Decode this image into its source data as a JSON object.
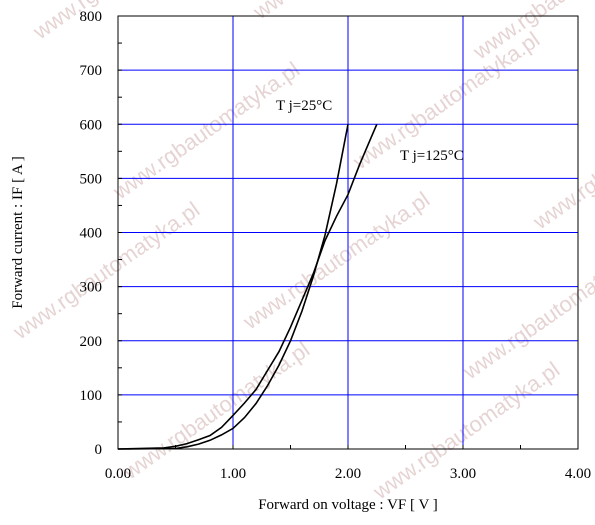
{
  "chart_data": {
    "type": "line",
    "xlabel": "Forward on voltage  :  VF  [ V ]",
    "ylabel": "Forward current  :  IF  [ A ]",
    "xlim": [
      0,
      4
    ],
    "ylim": [
      0,
      800
    ],
    "x_ticks": [
      "0.00",
      "1.00",
      "2.00",
      "3.00",
      "4.00"
    ],
    "y_ticks": [
      "0",
      "100",
      "200",
      "300",
      "400",
      "500",
      "600",
      "700",
      "800"
    ],
    "grid": true,
    "grid_color": "#0000ff",
    "series": [
      {
        "name": "T j=25°C",
        "color": "#000000",
        "points": [
          [
            0.0,
            0
          ],
          [
            0.5,
            1
          ],
          [
            0.6,
            4
          ],
          [
            0.7,
            9
          ],
          [
            0.8,
            16
          ],
          [
            0.9,
            26
          ],
          [
            1.0,
            38
          ],
          [
            1.1,
            58
          ],
          [
            1.2,
            84
          ],
          [
            1.3,
            117
          ],
          [
            1.4,
            155
          ],
          [
            1.5,
            200
          ],
          [
            1.6,
            255
          ],
          [
            1.7,
            320
          ],
          [
            1.8,
            395
          ],
          [
            1.9,
            490
          ],
          [
            2.0,
            600
          ]
        ]
      },
      {
        "name": "T j=125°C",
        "color": "#000000",
        "points": [
          [
            0.0,
            0
          ],
          [
            0.4,
            2
          ],
          [
            0.5,
            5
          ],
          [
            0.6,
            10
          ],
          [
            0.7,
            17
          ],
          [
            0.8,
            25
          ],
          [
            0.9,
            40
          ],
          [
            1.0,
            62
          ],
          [
            1.1,
            85
          ],
          [
            1.2,
            110
          ],
          [
            1.3,
            145
          ],
          [
            1.4,
            180
          ],
          [
            1.5,
            225
          ],
          [
            1.6,
            275
          ],
          [
            1.7,
            325
          ],
          [
            1.8,
            385
          ],
          [
            1.9,
            430
          ],
          [
            2.0,
            470
          ],
          [
            2.1,
            525
          ],
          [
            2.2,
            575
          ],
          [
            2.25,
            600
          ]
        ]
      }
    ]
  },
  "watermark": "www.rgbautomatyka.pl"
}
